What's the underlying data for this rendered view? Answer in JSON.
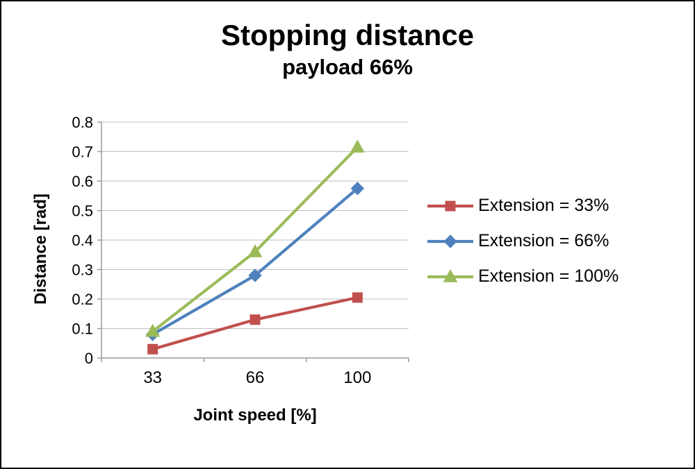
{
  "title": {
    "main": "Stopping distance",
    "sub": "payload 66%"
  },
  "chart_data": {
    "type": "line",
    "x": [
      33,
      66,
      100
    ],
    "categories": [
      "33",
      "66",
      "100"
    ],
    "xlabel": "Joint speed [%]",
    "ylabel": "Distance [rad]",
    "ylim": [
      0,
      0.8
    ],
    "ytick_step": 0.1,
    "grid": true,
    "legend_position": "right",
    "colors": {
      "gridline": "#bfbfbf",
      "axis": "#9a9a9a",
      "text": "#000000"
    },
    "series": [
      {
        "name": "Extension = 33%",
        "color": "#C0504D",
        "marker": "square",
        "values": [
          0.03,
          0.13,
          0.205
        ]
      },
      {
        "name": "Extension = 66%",
        "color": "#4F81BD",
        "marker": "diamond",
        "values": [
          0.08,
          0.28,
          0.575
        ]
      },
      {
        "name": "Extension = 100%",
        "color": "#9BBB59",
        "marker": "triangle",
        "values": [
          0.09,
          0.36,
          0.715
        ]
      }
    ]
  }
}
